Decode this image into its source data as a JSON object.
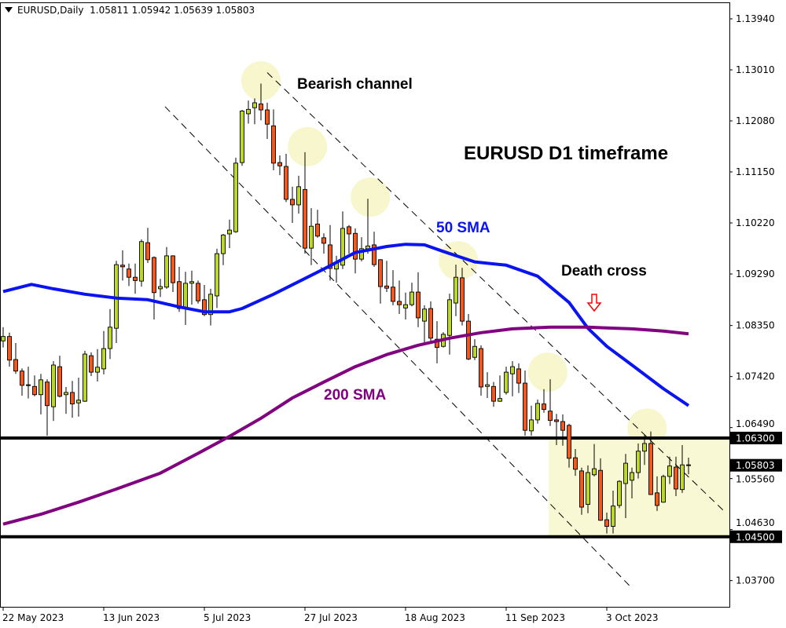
{
  "header": {
    "symbol_timeframe": "EURUSD,Daily",
    "open": "1.05811",
    "high": "1.05942",
    "low": "1.05639",
    "close": "1.05803"
  },
  "annotations": {
    "channel_label": "Bearish channel",
    "title": "EURUSD D1 timeframe",
    "sma50_label": "50 SMA",
    "sma200_label": "200 SMA",
    "death_cross_label": "Death cross"
  },
  "colors": {
    "bull": "#bcd631",
    "bear": "#f05a1e",
    "sma50": "#0a14f0",
    "sma200": "#800080",
    "highlight": "#f8f6cc",
    "range_box": "#f8f8d4",
    "arrow": "#ff0000"
  },
  "chart_data": {
    "type": "candlestick",
    "symbol": "EURUSD",
    "timeframe": "Daily",
    "ylim": [
      1.0335,
      1.1438
    ],
    "y_ticks": [
      "1.13940",
      "1.13010",
      "1.12080",
      "1.11150",
      "1.10220",
      "1.09290",
      "1.08350",
      "1.07420",
      "1.06490",
      "1.05560",
      "1.04630",
      "1.03700"
    ],
    "x_ticks": [
      {
        "index": 0,
        "label": "22 May 2023"
      },
      {
        "index": 16,
        "label": "13 Jun 2023"
      },
      {
        "index": 32,
        "label": "5 Jul 2023"
      },
      {
        "index": 48,
        "label": "27 Jul 2023"
      },
      {
        "index": 64,
        "label": "18 Aug 2023"
      },
      {
        "index": 80,
        "label": "11 Sep 2023"
      },
      {
        "index": 96,
        "label": "3 Oct 2023"
      }
    ],
    "ohlc_columns": [
      "open",
      "high",
      "low",
      "close"
    ],
    "candles": [
      [
        1.0807,
        1.0832,
        1.0795,
        1.0815
      ],
      [
        1.0815,
        1.0822,
        1.076,
        1.0772
      ],
      [
        1.0773,
        1.0803,
        1.0747,
        1.0752
      ],
      [
        1.0752,
        1.0757,
        1.0707,
        1.0726
      ],
      [
        1.0727,
        1.076,
        1.0702,
        1.0726
      ],
      [
        1.0724,
        1.0744,
        1.0706,
        1.0709
      ],
      [
        1.0709,
        1.0747,
        1.0673,
        1.0736
      ],
      [
        1.0732,
        1.0737,
        1.0634,
        1.0689
      ],
      [
        1.0687,
        1.077,
        1.0661,
        1.0763
      ],
      [
        1.076,
        1.078,
        1.0704,
        1.0706
      ],
      [
        1.0709,
        1.0723,
        1.0674,
        1.0713
      ],
      [
        1.0713,
        1.0734,
        1.0667,
        1.0692
      ],
      [
        1.0694,
        1.074,
        1.0669,
        1.0699
      ],
      [
        1.0697,
        1.0789,
        1.0696,
        1.0783
      ],
      [
        1.078,
        1.0786,
        1.0743,
        1.075
      ],
      [
        1.075,
        1.0792,
        1.0733,
        1.0759
      ],
      [
        1.0756,
        1.0825,
        1.0746,
        1.0793
      ],
      [
        1.0793,
        1.0865,
        1.0774,
        1.0832
      ],
      [
        1.083,
        1.0953,
        1.0803,
        1.0946
      ],
      [
        1.0945,
        1.0972,
        1.0917,
        1.0942
      ],
      [
        1.0938,
        1.0948,
        1.0907,
        1.0923
      ],
      [
        1.0923,
        1.0948,
        1.0893,
        1.0917
      ],
      [
        1.0916,
        1.0992,
        1.0906,
        1.0988
      ],
      [
        1.0986,
        1.1013,
        1.0949,
        1.0955
      ],
      [
        1.0959,
        1.0961,
        1.0846,
        1.0895
      ],
      [
        1.0902,
        1.092,
        1.0887,
        1.0906
      ],
      [
        1.0905,
        1.0978,
        1.0902,
        1.0962
      ],
      [
        1.0962,
        1.0963,
        1.0896,
        1.0913
      ],
      [
        1.0915,
        1.0942,
        1.086,
        1.0866
      ],
      [
        1.0866,
        1.0933,
        1.0836,
        1.0912
      ],
      [
        1.0912,
        1.0935,
        1.0873,
        1.0915
      ],
      [
        1.0912,
        1.0917,
        1.0875,
        1.088
      ],
      [
        1.0882,
        1.0909,
        1.0852,
        1.0855
      ],
      [
        1.0855,
        1.0902,
        1.0835,
        1.0892
      ],
      [
        1.0889,
        1.0975,
        1.0867,
        1.0966
      ],
      [
        1.0966,
        1.1002,
        1.0945,
        1.1
      ],
      [
        1.1002,
        1.1028,
        1.0976,
        1.1009
      ],
      [
        1.1006,
        1.1141,
        1.1004,
        1.1131
      ],
      [
        1.1132,
        1.1228,
        1.1126,
        1.1226
      ],
      [
        1.1221,
        1.1245,
        1.1203,
        1.1229
      ],
      [
        1.1232,
        1.1249,
        1.1202,
        1.1241
      ],
      [
        1.1239,
        1.1276,
        1.1209,
        1.1228
      ],
      [
        1.1228,
        1.1241,
        1.1175,
        1.1202
      ],
      [
        1.1199,
        1.1229,
        1.1118,
        1.1131
      ],
      [
        1.1132,
        1.1145,
        1.1109,
        1.1126
      ],
      [
        1.1125,
        1.1148,
        1.106,
        1.1065
      ],
      [
        1.1065,
        1.1088,
        1.1022,
        1.1055
      ],
      [
        1.1055,
        1.1108,
        1.1039,
        1.1088
      ],
      [
        1.1083,
        1.1151,
        1.0966,
        1.0976
      ],
      [
        1.0976,
        1.1049,
        1.0945,
        1.1016
      ],
      [
        1.102,
        1.1046,
        1.0995,
        1.0998
      ],
      [
        1.0995,
        1.1003,
        1.0966,
        1.0985
      ],
      [
        1.0982,
        1.1018,
        1.0917,
        1.0939
      ],
      [
        1.0938,
        1.0962,
        1.0913,
        1.0949
      ],
      [
        1.0945,
        1.1043,
        1.0938,
        1.1012
      ],
      [
        1.1015,
        1.1018,
        1.0966,
        1.1002
      ],
      [
        1.1003,
        1.1012,
        1.093,
        1.0956
      ],
      [
        1.0956,
        1.0996,
        1.0952,
        1.0975
      ],
      [
        1.0975,
        1.1066,
        1.0966,
        1.098
      ],
      [
        1.0982,
        1.1006,
        1.0942,
        1.0946
      ],
      [
        1.0955,
        1.0956,
        1.0875,
        1.0906
      ],
      [
        1.0907,
        1.0953,
        1.0896,
        1.0903
      ],
      [
        1.0905,
        1.0936,
        1.0872,
        1.0879
      ],
      [
        1.0879,
        1.0917,
        1.0856,
        1.0873
      ],
      [
        1.0867,
        1.0895,
        1.0846,
        1.0873
      ],
      [
        1.0873,
        1.0913,
        1.087,
        1.0896
      ],
      [
        1.0896,
        1.0932,
        1.0832,
        1.0849
      ],
      [
        1.0843,
        1.0872,
        1.0803,
        1.0865
      ],
      [
        1.0866,
        1.0879,
        1.0803,
        1.0812
      ],
      [
        1.081,
        1.0843,
        1.0766,
        1.0795
      ],
      [
        1.0797,
        1.0823,
        1.0795,
        1.0819
      ],
      [
        1.0817,
        1.0893,
        1.0782,
        1.0882
      ],
      [
        1.0876,
        1.0946,
        1.0852,
        1.0923
      ],
      [
        1.0922,
        1.094,
        1.0835,
        1.0843
      ],
      [
        1.0843,
        1.0856,
        1.0772,
        1.0774
      ],
      [
        1.0777,
        1.081,
        1.0772,
        1.0797
      ],
      [
        1.0793,
        1.0799,
        1.0707,
        1.0723
      ],
      [
        1.0724,
        1.075,
        1.0703,
        1.0727
      ],
      [
        1.0724,
        1.0732,
        1.0687,
        1.0697
      ],
      [
        1.0697,
        1.0744,
        1.0696,
        1.0702
      ],
      [
        1.0713,
        1.076,
        1.0709,
        1.075
      ],
      [
        1.0747,
        1.077,
        1.0706,
        1.076
      ],
      [
        1.0756,
        1.0766,
        1.0712,
        1.073
      ],
      [
        1.073,
        1.0753,
        1.0634,
        1.0644
      ],
      [
        1.0643,
        1.0689,
        1.0634,
        1.0663
      ],
      [
        1.0663,
        1.07,
        1.0656,
        1.0693
      ],
      [
        1.0692,
        1.0719,
        1.0676,
        1.0682
      ],
      [
        1.0679,
        1.0737,
        1.0652,
        1.0662
      ],
      [
        1.0663,
        1.0674,
        1.0617,
        1.066
      ],
      [
        1.066,
        1.0673,
        1.0616,
        1.0644
      ],
      [
        1.0653,
        1.0656,
        1.0576,
        1.0593
      ],
      [
        1.0594,
        1.061,
        1.0561,
        1.0573
      ],
      [
        1.057,
        1.0576,
        1.049,
        1.0504
      ],
      [
        1.0509,
        1.058,
        1.0493,
        1.0567
      ],
      [
        1.0563,
        1.0619,
        1.056,
        1.0574
      ],
      [
        1.0571,
        1.0593,
        1.0479,
        1.048
      ],
      [
        1.0481,
        1.0494,
        1.0456,
        1.0469
      ],
      [
        1.0469,
        1.0534,
        1.0456,
        1.0506
      ],
      [
        1.0507,
        1.0553,
        1.0502,
        1.0551
      ],
      [
        1.0547,
        1.0601,
        1.0484,
        1.0584
      ],
      [
        1.0553,
        1.0576,
        1.052,
        1.0567
      ],
      [
        1.0567,
        1.062,
        1.0556,
        1.0606
      ],
      [
        1.0606,
        1.0636,
        1.0581,
        1.062
      ],
      [
        1.062,
        1.0642,
        1.0526,
        1.0527
      ],
      [
        1.053,
        1.056,
        1.0497,
        1.0507
      ],
      [
        1.0513,
        1.0563,
        1.0512,
        1.056
      ],
      [
        1.056,
        1.0596,
        1.0546,
        1.0579
      ],
      [
        1.0577,
        1.0596,
        1.0524,
        1.0537
      ],
      [
        1.0536,
        1.0617,
        1.053,
        1.0581
      ],
      [
        1.05811,
        1.05942,
        1.05639,
        1.05803
      ]
    ],
    "series": [
      {
        "name": "50 SMA",
        "points": [
          [
            0,
            1.0897
          ],
          [
            4.5,
            1.091
          ],
          [
            8,
            1.0902
          ],
          [
            13,
            1.0892
          ],
          [
            18,
            1.0885
          ],
          [
            23,
            1.0882
          ],
          [
            28,
            1.0869
          ],
          [
            32,
            1.086
          ],
          [
            36,
            1.086
          ],
          [
            38,
            1.0866
          ],
          [
            43,
            1.0892
          ],
          [
            51,
            1.0938
          ],
          [
            56,
            1.0968
          ],
          [
            61,
            1.0979
          ],
          [
            64,
            1.0983
          ],
          [
            67,
            1.0982
          ],
          [
            70,
            1.097
          ],
          [
            75,
            1.0951
          ],
          [
            80,
            1.0945
          ],
          [
            85,
            1.0925
          ],
          [
            90,
            1.0877
          ],
          [
            93,
            1.083
          ],
          [
            96,
            1.0797
          ],
          [
            100,
            1.0763
          ],
          [
            105,
            1.072
          ],
          [
            109,
            1.0689
          ]
        ]
      },
      {
        "name": "200 SMA",
        "points": [
          [
            0,
            1.0473
          ],
          [
            6,
            1.0491
          ],
          [
            12,
            1.0513
          ],
          [
            18,
            1.0537
          ],
          [
            25,
            1.0566
          ],
          [
            31,
            1.0602
          ],
          [
            36,
            1.0633
          ],
          [
            41,
            1.0666
          ],
          [
            46,
            1.0703
          ],
          [
            51,
            1.0732
          ],
          [
            56,
            1.076
          ],
          [
            61,
            1.0782
          ],
          [
            66,
            1.0799
          ],
          [
            71,
            1.0812
          ],
          [
            76,
            1.0822
          ],
          [
            81,
            1.0829
          ],
          [
            87,
            1.0832
          ],
          [
            93,
            1.0832
          ],
          [
            100,
            1.0829
          ],
          [
            105,
            1.0825
          ],
          [
            109,
            1.082
          ]
        ]
      }
    ],
    "horizontal_levels": [
      {
        "price": 1.063,
        "label": "1.06300"
      },
      {
        "price": 1.045,
        "label": "1.04500"
      }
    ],
    "current_price_label": "1.05803",
    "current_price": 1.05803,
    "channel_lines": [
      [
        [
          42,
          1.1296
        ],
        [
          115,
          1.0493
        ]
      ],
      [
        [
          25.75,
          1.1234
        ],
        [
          100.1,
          1.0355
        ]
      ]
    ],
    "highlight_points": [
      [
        41,
        1.1281
      ],
      [
        48.4,
        1.1161
      ],
      [
        58.4,
        1.1069
      ],
      [
        72.4,
        1.0953
      ],
      [
        86.6,
        1.075
      ],
      [
        102.4,
        1.0648
      ]
    ],
    "range_box": {
      "from_index": 86.75,
      "top": 1.063,
      "bottom": 1.045
    },
    "death_cross_index": 93
  }
}
